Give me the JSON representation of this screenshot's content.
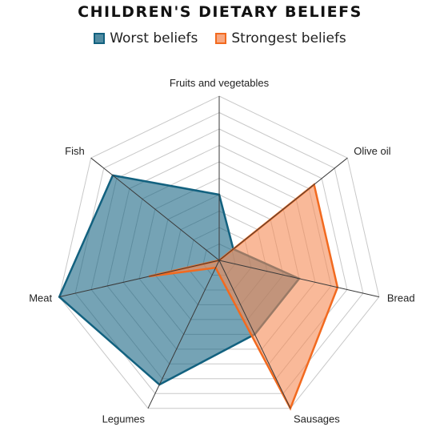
{
  "chart_data": {
    "type": "radar",
    "title": "CHILDREN'S DIETARY BELIEFS",
    "categories": [
      "Fruits and vegetables",
      "Olive oil",
      "Bread",
      "Sausages",
      "Legumes",
      "Meat",
      "Fish"
    ],
    "rlim": [
      0,
      10
    ],
    "rings": 10,
    "grid": true,
    "legend_position": "top",
    "series": [
      {
        "name": "Worst beliefs",
        "values": [
          4,
          1.1,
          5,
          5,
          8.4,
          10,
          8.3
        ],
        "stroke": "#12617f",
        "fill": "#12617f",
        "fill_opacity": 0.58
      },
      {
        "name": "Strongest beliefs",
        "values": [
          0,
          7.4,
          7.4,
          10,
          0.5,
          4.4,
          0
        ],
        "stroke": "#f26a1f",
        "fill": "#f58a55",
        "fill_opacity": 0.6
      }
    ]
  },
  "colors": {
    "grid": "#c8c8c8",
    "spoke": "#3a3a3a",
    "text": "#222222"
  }
}
